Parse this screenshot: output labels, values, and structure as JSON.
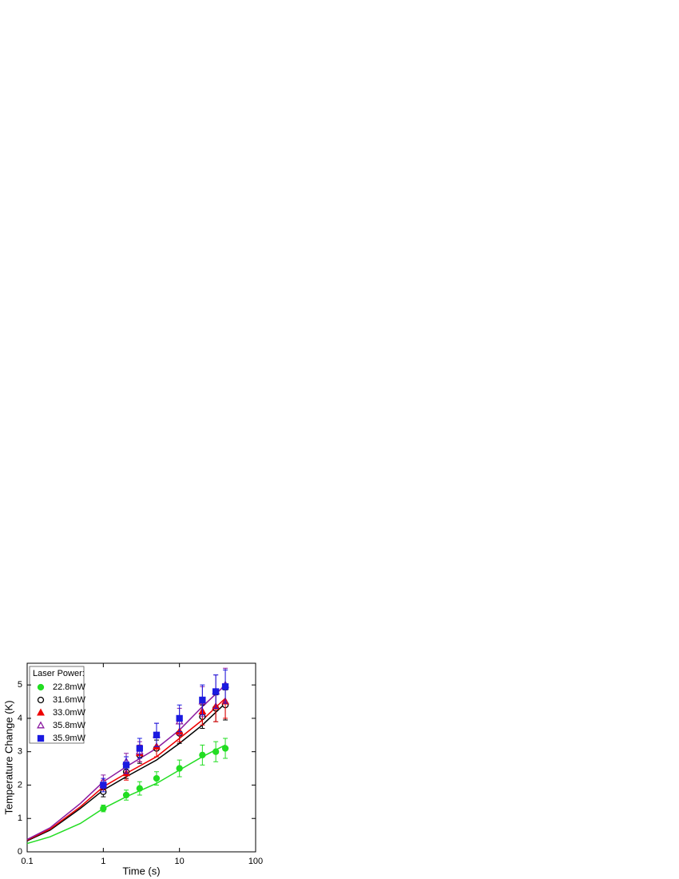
{
  "chart_data": {
    "type": "scatter",
    "xlabel": "Time (s)",
    "ylabel": "Temperature Change (K)",
    "legend_title": "Laser Power:",
    "legend": "upper left",
    "xscale": "log",
    "xlim": [
      0.1,
      100
    ],
    "xticks": [
      0.1,
      1,
      10,
      100
    ],
    "ylim": [
      0,
      5.65
    ],
    "yticks": [
      0,
      1,
      2,
      3,
      4,
      5
    ],
    "x": [
      1,
      2,
      3,
      5,
      10,
      20,
      30,
      40
    ],
    "fit_x": [
      0.1,
      0.2,
      0.5,
      1,
      2,
      5,
      10,
      20,
      40
    ],
    "series": [
      {
        "name": "22.8mW",
        "color": "#22dd22",
        "marker": "circle",
        "filled": true,
        "values": [
          1.3,
          1.7,
          1.9,
          2.2,
          2.5,
          2.9,
          3.0,
          3.1
        ],
        "errors": [
          0.1,
          0.15,
          0.2,
          0.2,
          0.25,
          0.3,
          0.3,
          0.3
        ],
        "fit": [
          0.25,
          0.45,
          0.85,
          1.3,
          1.65,
          2.05,
          2.45,
          2.85,
          3.2
        ]
      },
      {
        "name": "31.6mW",
        "color": "#000000",
        "marker": "circle",
        "filled": false,
        "values": [
          1.8,
          2.4,
          2.9,
          3.1,
          3.55,
          4.05,
          4.3,
          4.4
        ],
        "errors": [
          0.15,
          0.2,
          0.25,
          0.25,
          0.3,
          0.35,
          0.4,
          0.45
        ],
        "fit": [
          0.33,
          0.65,
          1.3,
          1.85,
          2.25,
          2.75,
          3.25,
          3.8,
          4.45
        ]
      },
      {
        "name": "33.0mW",
        "color": "#ee0000",
        "marker": "triangle",
        "filled": true,
        "values": [
          2.0,
          2.35,
          2.95,
          3.15,
          3.6,
          4.2,
          4.35,
          4.5
        ],
        "errors": [
          0.15,
          0.2,
          0.25,
          0.3,
          0.3,
          0.4,
          0.45,
          0.5
        ],
        "fit": [
          0.35,
          0.68,
          1.35,
          1.95,
          2.35,
          2.85,
          3.4,
          3.95,
          4.6
        ]
      },
      {
        "name": "35.8mW",
        "color": "#8a1aa0",
        "marker": "triangle",
        "filled": false,
        "values": [
          2.1,
          2.7,
          3.0,
          3.5,
          3.9,
          4.5,
          4.8,
          5.0
        ],
        "errors": [
          0.2,
          0.25,
          0.3,
          0.35,
          0.4,
          0.45,
          0.5,
          0.5
        ],
        "fit": [
          0.37,
          0.72,
          1.45,
          2.1,
          2.55,
          3.1,
          3.65,
          4.35,
          5.0
        ]
      },
      {
        "name": "35.9mW",
        "color": "#1a1ae0",
        "marker": "square",
        "filled": true,
        "values": [
          2.0,
          2.6,
          3.1,
          3.5,
          4.0,
          4.55,
          4.8,
          4.95
        ],
        "errors": [
          0.2,
          0.25,
          0.3,
          0.35,
          0.4,
          0.45,
          0.5,
          0.5
        ]
      }
    ]
  }
}
